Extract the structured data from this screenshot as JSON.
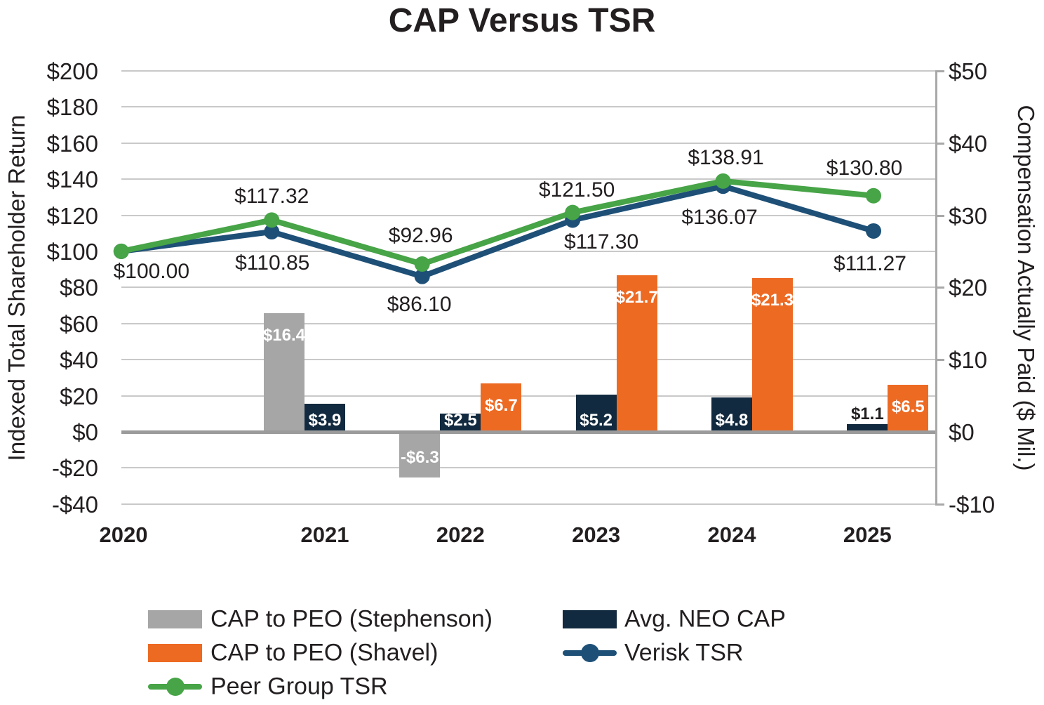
{
  "title": "CAP Versus TSR",
  "chart_data": {
    "type": "combo bar + line, dual axis",
    "title": "CAP Versus TSR",
    "x_categories": [
      "2020",
      "2021",
      "2022",
      "2023",
      "2024",
      "2025"
    ],
    "left_axis": {
      "title": "Indexed Total Shareholder Return",
      "range": [
        -40,
        200
      ],
      "gridline_step": 20,
      "ticks": [
        {
          "label": "$200",
          "value": 200
        },
        {
          "label": "$180",
          "value": 180
        },
        {
          "label": "$160",
          "value": 160
        },
        {
          "label": "$140",
          "value": 140
        },
        {
          "label": "$120",
          "value": 120
        },
        {
          "label": "$100",
          "value": 100
        },
        {
          "label": "$80",
          "value": 80
        },
        {
          "label": "$60",
          "value": 60
        },
        {
          "label": "$40",
          "value": 40
        },
        {
          "label": "$20",
          "value": 20
        },
        {
          "label": "$0",
          "value": 0
        },
        {
          "label": "-$20",
          "value": -20
        },
        {
          "label": "-$40",
          "value": -40
        }
      ]
    },
    "right_axis": {
      "title": "Compensation Actually Paid ($ Mil.)",
      "range": [
        -10,
        50
      ],
      "ticks": [
        {
          "label": "$50",
          "value": 50
        },
        {
          "label": "$40",
          "value": 40
        },
        {
          "label": "$30",
          "value": 30
        },
        {
          "label": "$20",
          "value": 20
        },
        {
          "label": "$10",
          "value": 10
        },
        {
          "label": "$0",
          "value": 0
        },
        {
          "label": "-$10",
          "value": -10
        }
      ]
    },
    "bar_series": [
      {
        "name": "CAP to PEO (Stephenson)",
        "color": "#A6A6A6",
        "slot": 0,
        "points": [
          {
            "year": "2021",
            "value": 16.4,
            "label": "$16.4"
          },
          {
            "year": "2022",
            "value": -6.3,
            "label": "-$6.3"
          }
        ]
      },
      {
        "name": "Avg. NEO CAP",
        "color": "#122A3F",
        "slot": 1,
        "points": [
          {
            "year": "2021",
            "value": 3.9,
            "label": "$3.9"
          },
          {
            "year": "2022",
            "value": 2.5,
            "label": "$2.5"
          },
          {
            "year": "2023",
            "value": 5.2,
            "label": "$5.2"
          },
          {
            "year": "2024",
            "value": 4.8,
            "label": "$4.8"
          },
          {
            "year": "2025",
            "value": 1.1,
            "label": "$1.1"
          }
        ]
      },
      {
        "name": "CAP to PEO (Shavel)",
        "color": "#ED6A23",
        "slot": 2,
        "points": [
          {
            "year": "2022",
            "value": 6.7,
            "label": "$6.7"
          },
          {
            "year": "2023",
            "value": 21.7,
            "label": "$21.7"
          },
          {
            "year": "2024",
            "value": 21.3,
            "label": "$21.3"
          },
          {
            "year": "2025",
            "value": 6.5,
            "label": "$6.5"
          }
        ]
      }
    ],
    "line_series": [
      {
        "name": "Verisk TSR",
        "color": "#1E5077",
        "values": [
          100.0,
          110.85,
          86.1,
          117.3,
          136.07,
          111.27
        ],
        "labels": [
          null,
          "$110.85",
          "$86.10",
          "$117.30",
          "$136.07",
          "$111.27"
        ]
      },
      {
        "name": "Peer Group TSR",
        "color": "#47A447",
        "values": [
          100.0,
          117.32,
          92.96,
          121.5,
          138.91,
          130.8
        ],
        "labels": [
          "$100.00",
          "$117.32",
          "$92.96",
          "$121.50",
          "$138.91",
          "$130.80"
        ]
      }
    ],
    "legend": [
      {
        "label": "CAP to PEO (Stephenson)",
        "swatch": "bar",
        "color": "#A6A6A6",
        "col": 0,
        "row": 0
      },
      {
        "label": "CAP to PEO (Shavel)",
        "swatch": "bar",
        "color": "#ED6A23",
        "col": 0,
        "row": 1
      },
      {
        "label": "Peer Group TSR",
        "swatch": "line",
        "color": "#47A447",
        "col": 0,
        "row": 2
      },
      {
        "label": "Avg. NEO CAP",
        "swatch": "bar",
        "color": "#122A3F",
        "col": 1,
        "row": 0
      },
      {
        "label": "Verisk TSR",
        "swatch": "line",
        "color": "#1E5077",
        "col": 1,
        "row": 1
      }
    ]
  }
}
